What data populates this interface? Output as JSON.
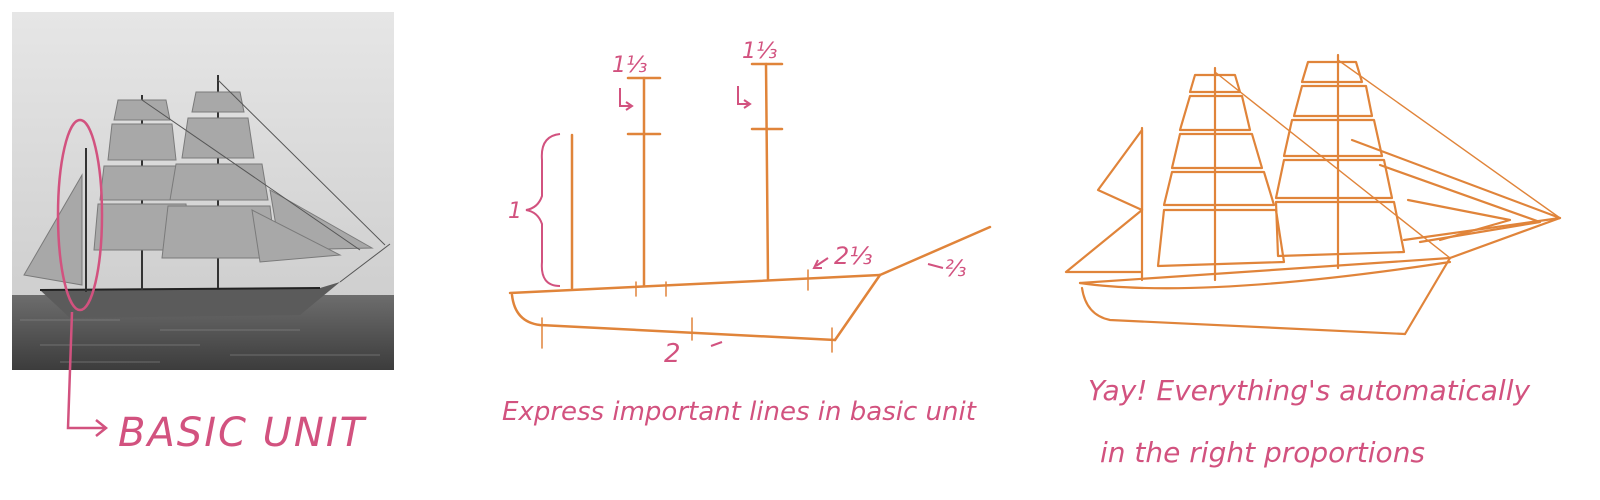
{
  "colors": {
    "sketch": "#e0843a",
    "annotation": "#d2527f",
    "photo_sky": "#d2d2d2",
    "photo_sea": "#5a5a5a"
  },
  "panel1": {
    "label": "BASIC UNIT"
  },
  "panel2": {
    "caption": "Express important lines in basic unit",
    "marks": {
      "basic_unit": "1",
      "mast1_extra": "1⅓",
      "mast2_extra": "1⅓",
      "deck_right": "2⅓",
      "bowsprit": "⅔",
      "hull_length": "2"
    }
  },
  "panel3": {
    "caption_line1": "Yay! Everything's automatically",
    "caption_line2": "in the right proportions"
  }
}
